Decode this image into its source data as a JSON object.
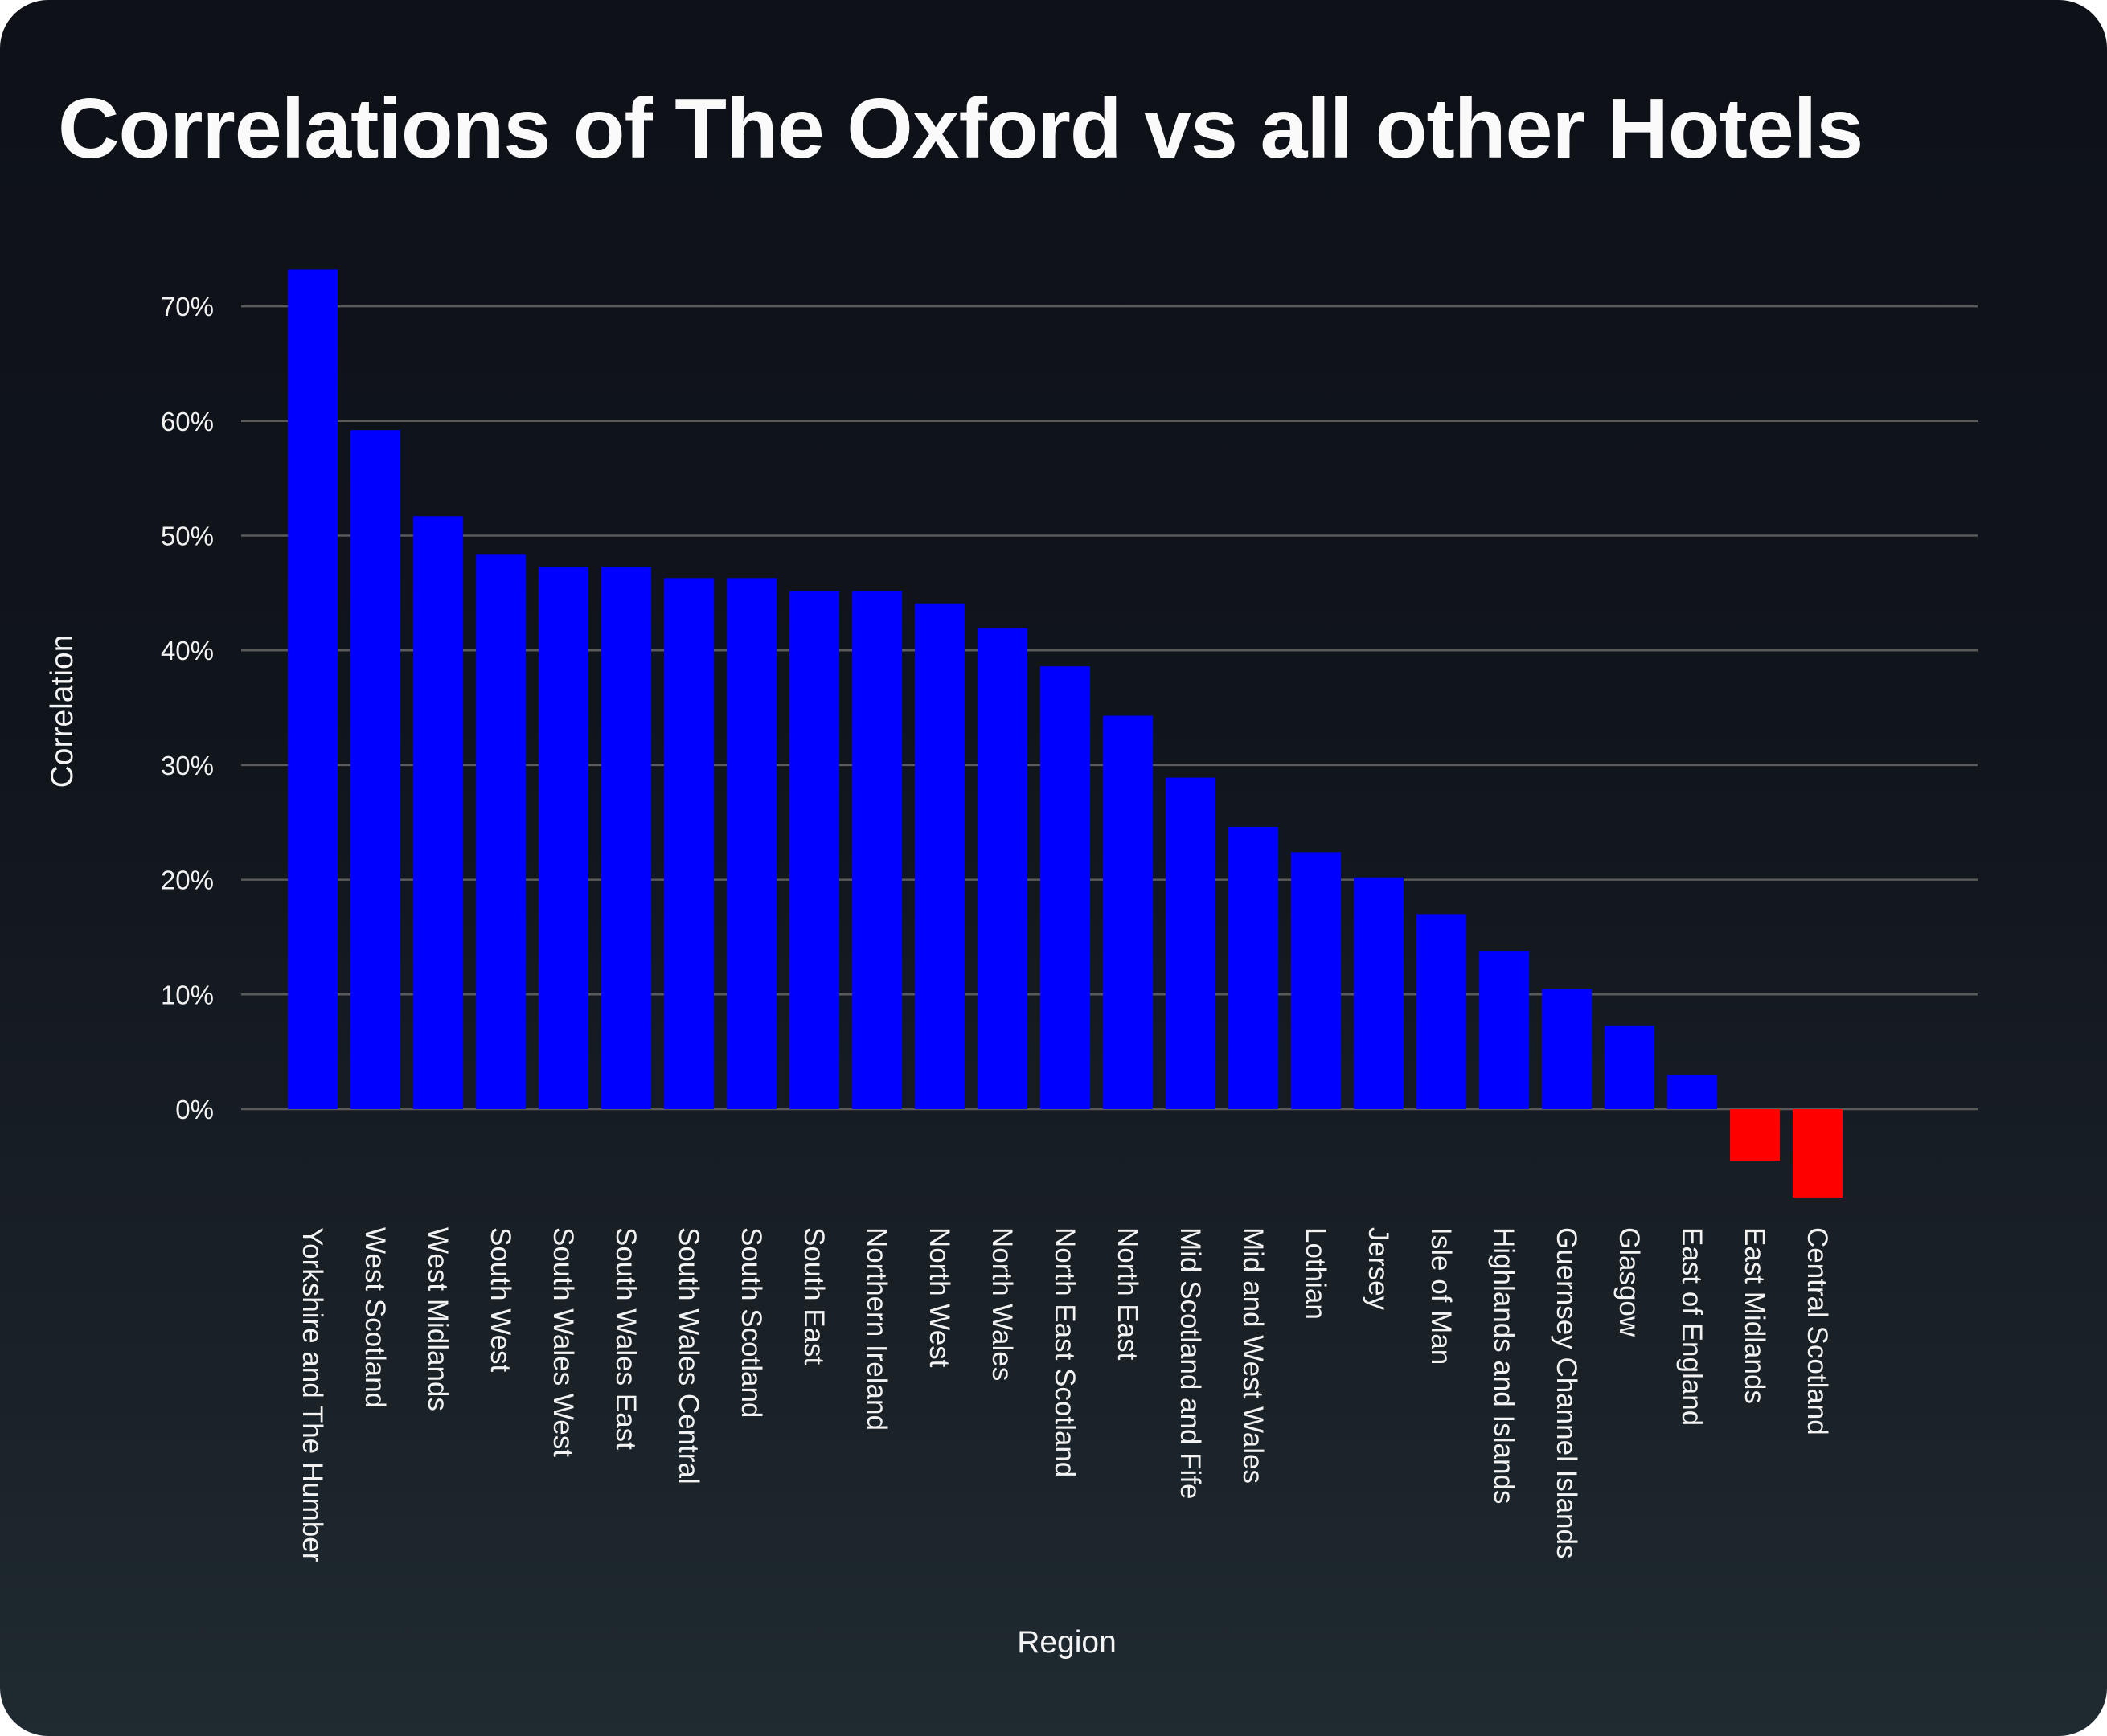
{
  "chart_data": {
    "type": "bar",
    "title": "Correlations of The Oxford vs all other Hotels",
    "xlabel": "Region",
    "ylabel": "Correlation",
    "ylim": [
      -10,
      75
    ],
    "yticks": [
      0,
      10,
      20,
      30,
      40,
      50,
      60,
      70
    ],
    "ytick_labels": [
      "0%",
      "10%",
      "20%",
      "30%",
      "40%",
      "50%",
      "60%",
      "70%"
    ],
    "grid": true,
    "legend": "none",
    "colors": {
      "positive": "#0000ff",
      "negative": "#ff0000",
      "grid": "#5a5a5a",
      "text": "#f2f2f2"
    },
    "categories": [
      "Yorkshire and The Humber",
      "West Scotland",
      "West Midlands",
      "South West",
      "South Wales West",
      "South Wales East",
      "South Wales Central",
      "South Scotland",
      "South East",
      "Northern Ireland",
      "North West",
      "North Wales",
      "North East Scotland",
      "North East",
      "Mid Scotland and Fife",
      "Mid and West Wales",
      "Lothian",
      "Jersey",
      "Isle of Man",
      "Highlands and Islands",
      "Guernsey Channel Islands",
      "Glasgow",
      "East of England",
      "East Midlands",
      "Central Scotland"
    ],
    "values": [
      73.2,
      59.2,
      51.7,
      48.4,
      47.3,
      47.3,
      46.3,
      46.3,
      45.2,
      45.2,
      44.1,
      41.9,
      38.6,
      34.3,
      28.9,
      24.6,
      22.4,
      20.2,
      17.0,
      13.8,
      10.5,
      7.3,
      3.0,
      -4.5,
      -7.7
    ]
  }
}
